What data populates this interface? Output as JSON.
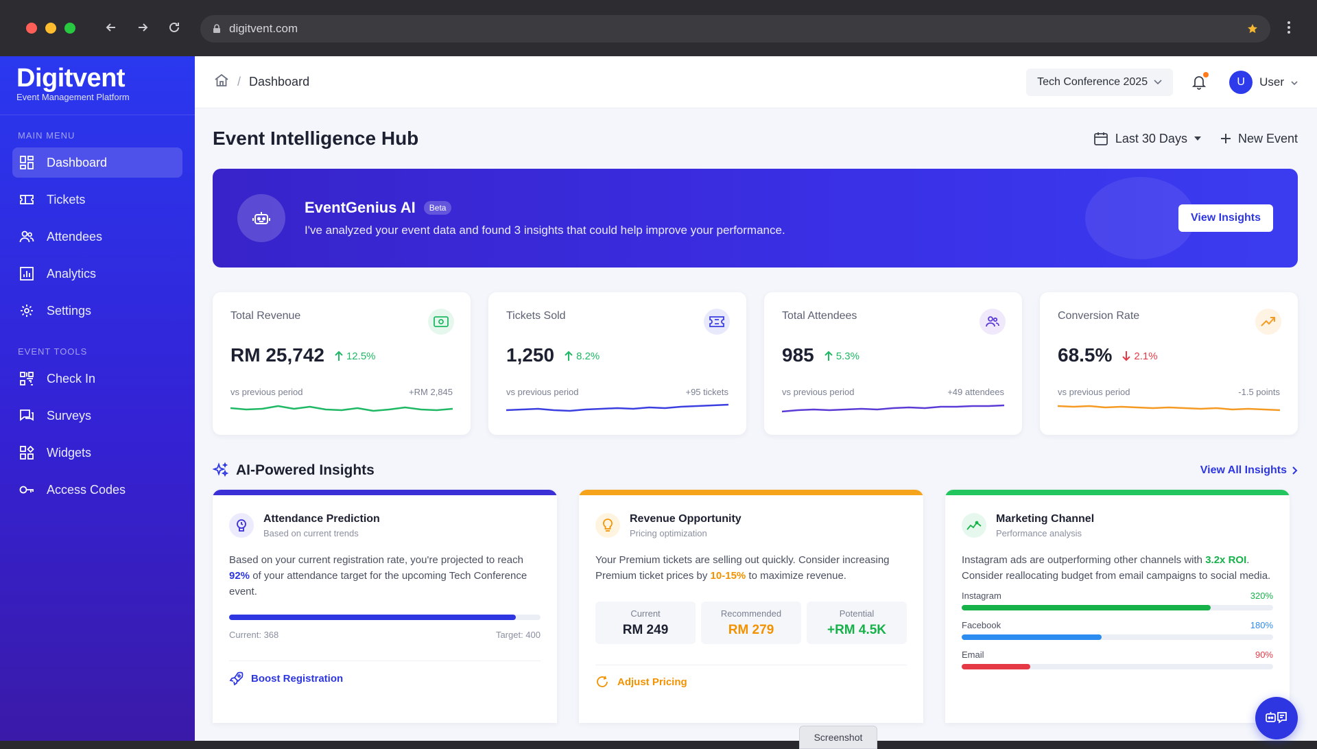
{
  "browser": {
    "url": "digitvent.com"
  },
  "brand": {
    "name": "Digitvent",
    "tagline": "Event Management Platform"
  },
  "sidebar": {
    "main_menu_heading": "MAIN MENU",
    "main_items": [
      {
        "label": "Dashboard",
        "icon": "dashboard-icon"
      },
      {
        "label": "Tickets",
        "icon": "ticket-icon"
      },
      {
        "label": "Attendees",
        "icon": "users-icon"
      },
      {
        "label": "Analytics",
        "icon": "chart-icon"
      },
      {
        "label": "Settings",
        "icon": "gear-icon"
      }
    ],
    "tools_heading": "EVENT TOOLS",
    "tool_items": [
      {
        "label": "Check In",
        "icon": "qr-icon"
      },
      {
        "label": "Surveys",
        "icon": "survey-icon"
      },
      {
        "label": "Widgets",
        "icon": "widgets-icon"
      },
      {
        "label": "Access Codes",
        "icon": "key-icon"
      }
    ]
  },
  "topbar": {
    "breadcrumb_sep": "/",
    "breadcrumb_current": "Dashboard",
    "event_select": "Tech Conference 2025",
    "user_initial": "U",
    "user_name": "User"
  },
  "hub": {
    "title": "Event Intelligence Hub",
    "date_range": "Last 30 Days",
    "new_event": "New Event"
  },
  "ai_banner": {
    "title": "EventGenius AI",
    "badge": "Beta",
    "desc": "I've analyzed your event data and found 3 insights that could help improve your performance.",
    "button": "View Insights"
  },
  "stats": [
    {
      "label": "Total Revenue",
      "value": "RM 25,742",
      "change": "12.5%",
      "direction": "up",
      "foot_left": "vs previous period",
      "foot_right": "+RM 2,845",
      "color": "#1fb864",
      "icon_bg": "#e6f8ee",
      "spark": [
        0.45,
        0.55,
        0.5,
        0.3,
        0.5,
        0.35,
        0.55,
        0.6,
        0.45,
        0.65,
        0.55,
        0.4,
        0.55,
        0.6,
        0.5
      ]
    },
    {
      "label": "Tickets Sold",
      "value": "1,250",
      "change": "8.2%",
      "direction": "up",
      "foot_left": "vs previous period",
      "foot_right": "+95 tickets",
      "color": "#3b3fe0",
      "icon_bg": "#e8eafc",
      "spark": [
        0.6,
        0.55,
        0.5,
        0.6,
        0.65,
        0.55,
        0.5,
        0.45,
        0.5,
        0.4,
        0.45,
        0.35,
        0.3,
        0.25,
        0.2
      ]
    },
    {
      "label": "Total Attendees",
      "value": "985",
      "change": "5.3%",
      "direction": "up",
      "foot_left": "vs previous period",
      "foot_right": "+49 attendees",
      "color": "#5b3bd6",
      "icon_bg": "#efe9fb",
      "spark": [
        0.7,
        0.6,
        0.55,
        0.6,
        0.55,
        0.5,
        0.55,
        0.45,
        0.4,
        0.45,
        0.35,
        0.35,
        0.3,
        0.3,
        0.25
      ]
    },
    {
      "label": "Conversion Rate",
      "value": "68.5%",
      "change": "2.1%",
      "direction": "down",
      "foot_left": "vs previous period",
      "foot_right": "-1.5 points",
      "color": "#f59a23",
      "icon_bg": "#fff3e3",
      "spark": [
        0.3,
        0.35,
        0.3,
        0.4,
        0.35,
        0.4,
        0.45,
        0.4,
        0.45,
        0.5,
        0.45,
        0.55,
        0.5,
        0.55,
        0.6
      ]
    }
  ],
  "insights": {
    "title": "AI-Powered Insights",
    "view_all": "View All Insights",
    "attendance": {
      "title": "Attendance Prediction",
      "subtitle": "Based on current trends",
      "text_1": "Based on your current registration rate, you're projected to reach ",
      "highlight": "92%",
      "text_2": " of your attendance target for the upcoming Tech Conference event.",
      "progress": 0.92,
      "current": "Current: 368",
      "target": "Target: 400",
      "action": "Boost Registration"
    },
    "revenue": {
      "title": "Revenue Opportunity",
      "subtitle": "Pricing optimization",
      "text_1": "Your Premium tickets are selling out quickly. Consider increasing Premium ticket prices by ",
      "highlight": "10-15%",
      "text_2": " to maximize revenue.",
      "boxes": [
        {
          "label": "Current",
          "value": "RM 249",
          "color": "#1c2030"
        },
        {
          "label": "Recommended",
          "value": "RM 279",
          "color": "#f39200"
        },
        {
          "label": "Potential",
          "value": "+RM 4.5K",
          "color": "#17b14a"
        }
      ],
      "action": "Adjust Pricing"
    },
    "marketing": {
      "title": "Marketing Channel",
      "subtitle": "Performance analysis",
      "text_1": "Instagram ads are outperforming other channels with ",
      "highlight": "3.2x ROI",
      "text_2": ". Consider reallocating budget from email campaigns to social media.",
      "channels": [
        {
          "name": "Instagram",
          "pct": "320%",
          "fill": 0.8,
          "color": "#17b14a"
        },
        {
          "name": "Facebook",
          "pct": "180%",
          "fill": 0.45,
          "color": "#2d8cf0"
        },
        {
          "name": "Email",
          "pct": "90%",
          "fill": 0.22,
          "color": "#e63946"
        }
      ]
    }
  },
  "screenshot_tag": "Screenshot"
}
